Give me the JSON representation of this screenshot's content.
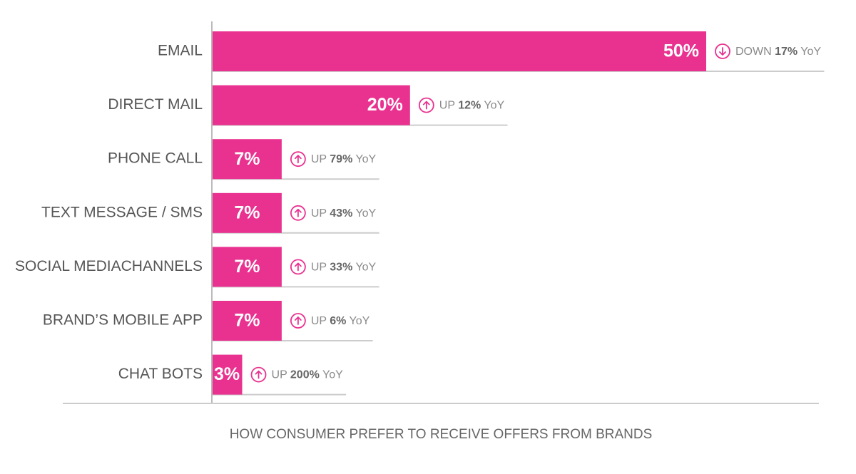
{
  "chart_data": {
    "type": "bar",
    "orientation": "horizontal",
    "title": "HOW CONSUMER PREFER TO RECEIVE OFFERS FROM BRANDS",
    "categories": [
      "EMAIL",
      "DIRECT MAIL",
      "PHONE CALL",
      "TEXT MESSAGE / SMS",
      "SOCIAL MEDIACHANNELS",
      "BRAND’S MOBILE APP",
      "CHAT BOTS"
    ],
    "values": [
      50,
      20,
      7,
      7,
      7,
      7,
      3
    ],
    "value_labels": [
      "50%",
      "20%",
      "7%",
      "7%",
      "7%",
      "7%",
      "3%"
    ],
    "color": "#e9318f",
    "annotations": [
      {
        "direction": "DOWN",
        "change": "17%",
        "period": "YoY"
      },
      {
        "direction": "UP",
        "change": "12%",
        "period": "YoY"
      },
      {
        "direction": "UP",
        "change": "79%",
        "period": "YoY"
      },
      {
        "direction": "UP",
        "change": "43%",
        "period": "YoY"
      },
      {
        "direction": "UP",
        "change": "33%",
        "period": "YoY"
      },
      {
        "direction": "UP",
        "change": "6%",
        "period": "YoY"
      },
      {
        "direction": "UP",
        "change": "200%",
        "period": "YoY"
      }
    ]
  }
}
